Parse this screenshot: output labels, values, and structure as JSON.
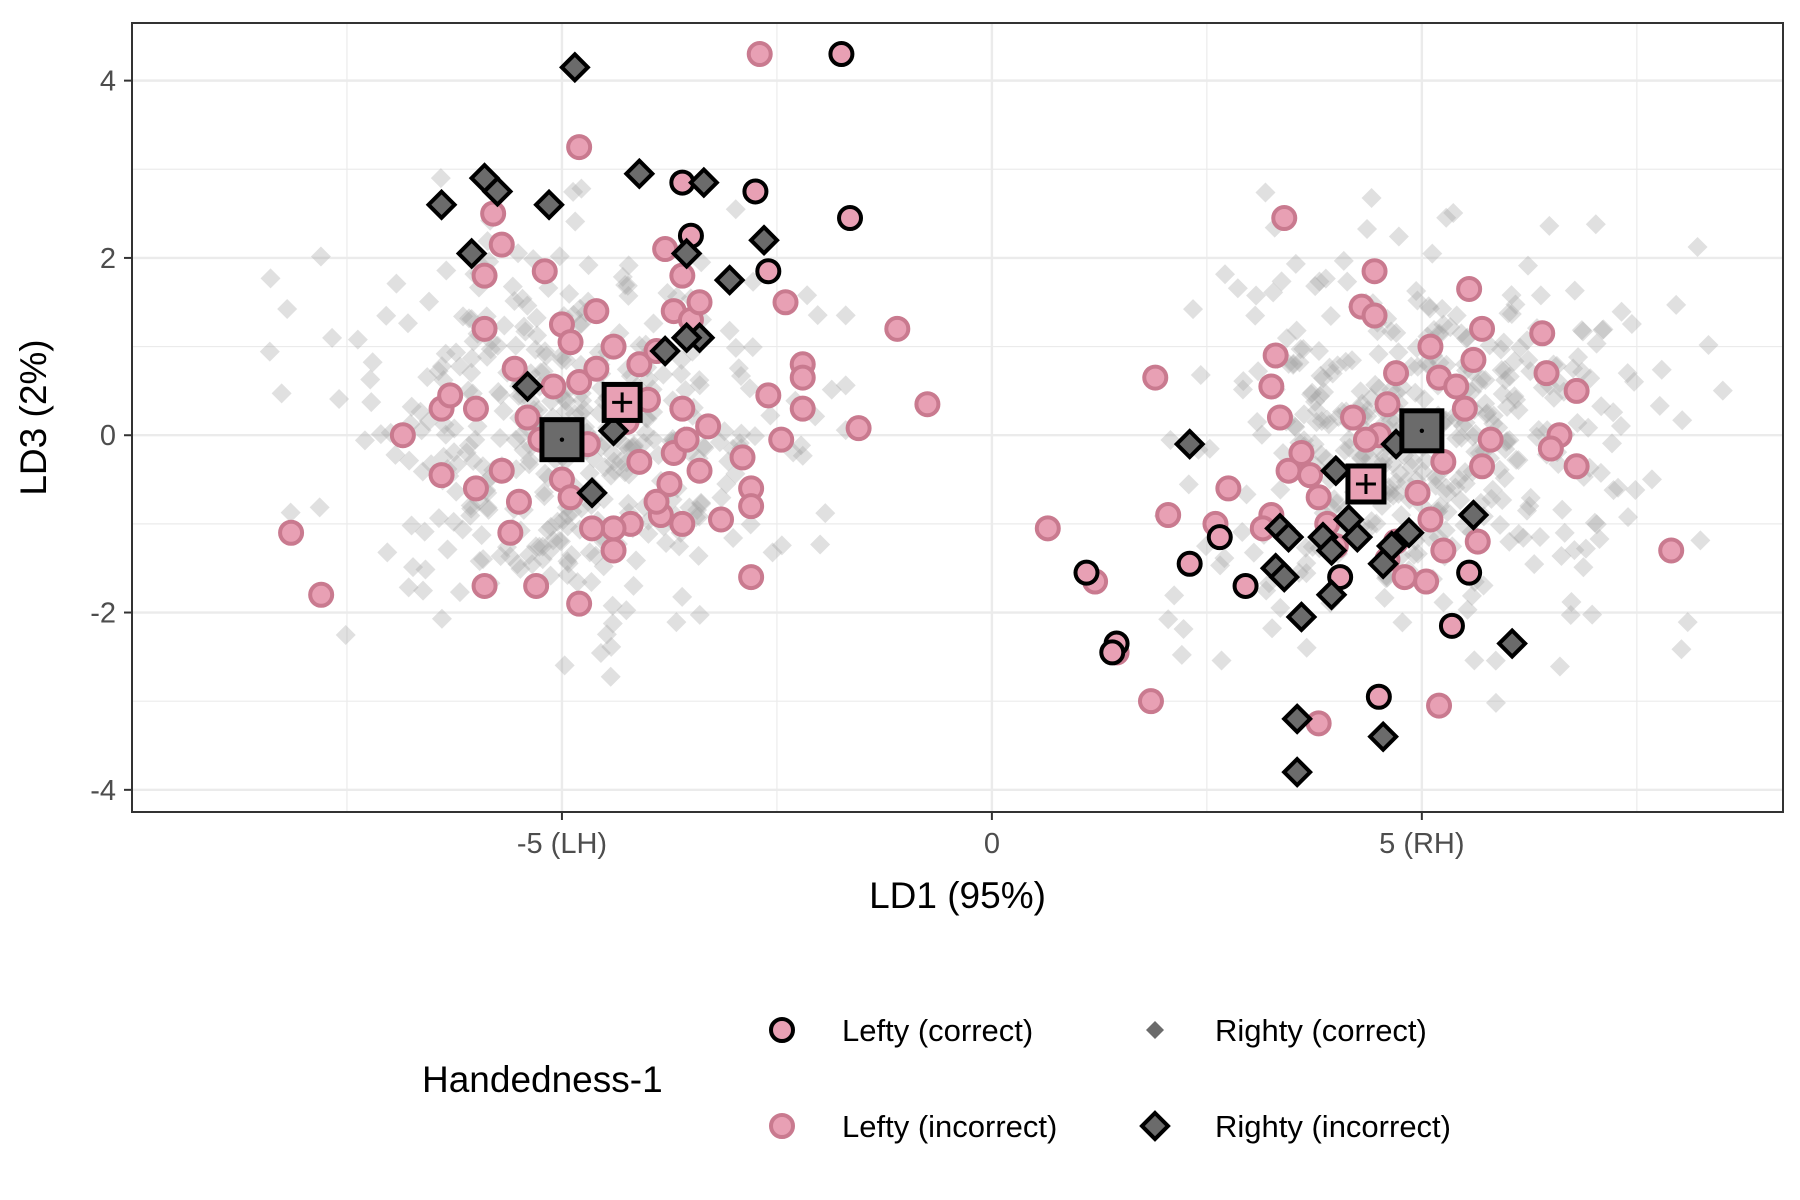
{
  "chart_data": {
    "type": "scatter",
    "xlabel": "LD1 (95%)",
    "ylabel": "LD3 (2%)",
    "xlim": [
      -10,
      9.2
    ],
    "ylim": [
      -4.25,
      4.65
    ],
    "x_ticks": [
      {
        "value": -5,
        "label": "-5 (LH)"
      },
      {
        "value": 0,
        "label": "0"
      },
      {
        "value": 5,
        "label": "5 (RH)"
      }
    ],
    "y_ticks": [
      {
        "value": -4,
        "label": "-4"
      },
      {
        "value": -2,
        "label": "-2"
      },
      {
        "value": 0,
        "label": "0"
      },
      {
        "value": 2,
        "label": "2"
      },
      {
        "value": 4,
        "label": "4"
      }
    ],
    "grid": true,
    "legend": {
      "title": "Handedness-1",
      "placement": "bottom",
      "entries": [
        {
          "key": "lefty_correct",
          "label": "Lefty (correct)"
        },
        {
          "key": "righty_correct",
          "label": "Righty (correct)"
        },
        {
          "key": "lefty_incorrect",
          "label": "Lefty (incorrect)"
        },
        {
          "key": "righty_incorrect",
          "label": "Righty (incorrect)"
        }
      ]
    },
    "colors": {
      "lefty_fill": "#e8a0b4",
      "lefty_incorrect_stroke": "#c97a8f",
      "righty_fill": "#6b6b6b",
      "righty_correct_fill": "#9e9e9e",
      "outline": "#000000",
      "grid": "#ebebeb",
      "panel_border": "#333333"
    },
    "series": [
      {
        "key": "righty_correct",
        "name": "Righty (correct)",
        "cluster_summary": [
          {
            "center": [
              -5.0,
              0.0
            ],
            "sd": [
              1.3,
              1.05
            ],
            "n": 420,
            "range_x": [
              -9.0,
              -1.7
            ],
            "range_y": [
              -3.3,
              2.9
            ]
          },
          {
            "center": [
              5.0,
              0.0
            ],
            "sd": [
              1.3,
              1.05
            ],
            "n": 420,
            "range_x": [
              1.4,
              8.5
            ],
            "range_y": [
              -3.3,
              3.2
            ]
          }
        ]
      },
      {
        "key": "lefty_incorrect",
        "name": "Lefty (incorrect)",
        "points": [
          [
            -2.7,
            4.3
          ],
          [
            -4.8,
            3.25
          ],
          [
            -5.8,
            2.5
          ],
          [
            -5.7,
            2.15
          ],
          [
            -5.9,
            1.8
          ],
          [
            -5.2,
            1.85
          ],
          [
            -5.9,
            1.2
          ],
          [
            -5.0,
            1.25
          ],
          [
            -4.9,
            1.05
          ],
          [
            -4.6,
            1.4
          ],
          [
            -4.4,
            1.0
          ],
          [
            -4.1,
            0.8
          ],
          [
            -3.9,
            0.95
          ],
          [
            -3.7,
            1.4
          ],
          [
            -3.6,
            1.8
          ],
          [
            -3.5,
            1.3
          ],
          [
            -3.4,
            1.5
          ],
          [
            -3.8,
            2.1
          ],
          [
            -2.4,
            1.5
          ],
          [
            -2.2,
            0.8
          ],
          [
            -2.2,
            0.65
          ],
          [
            -2.2,
            0.3
          ],
          [
            -2.6,
            0.45
          ],
          [
            -1.1,
            1.2
          ],
          [
            -0.75,
            0.35
          ],
          [
            -1.55,
            0.08
          ],
          [
            -2.45,
            -0.05
          ],
          [
            -2.9,
            -0.25
          ],
          [
            -2.8,
            -0.6
          ],
          [
            -2.8,
            -0.8
          ],
          [
            -2.8,
            -1.6
          ],
          [
            -3.6,
            -1.0
          ],
          [
            -3.75,
            -0.55
          ],
          [
            -3.85,
            -0.9
          ],
          [
            -4.2,
            -1.0
          ],
          [
            -4.4,
            -1.05
          ],
          [
            -4.4,
            -1.3
          ],
          [
            -4.8,
            -1.9
          ],
          [
            -5.3,
            -1.7
          ],
          [
            -5.6,
            -1.1
          ],
          [
            -5.9,
            -1.7
          ],
          [
            -6.0,
            -0.6
          ],
          [
            -6.4,
            -0.45
          ],
          [
            -6.4,
            0.3
          ],
          [
            -6.3,
            0.45
          ],
          [
            -6.0,
            0.3
          ],
          [
            -6.85,
            0.0
          ],
          [
            -5.5,
            -0.75
          ],
          [
            -5.7,
            -0.4
          ],
          [
            -5.0,
            -0.5
          ],
          [
            -5.4,
            0.2
          ],
          [
            -5.1,
            0.55
          ],
          [
            -4.8,
            0.6
          ],
          [
            -4.6,
            0.75
          ],
          [
            -4.3,
            0.4
          ],
          [
            -4.0,
            0.4
          ],
          [
            -3.6,
            0.3
          ],
          [
            -3.7,
            -0.2
          ],
          [
            -3.4,
            -0.4
          ],
          [
            -3.3,
            0.1
          ],
          [
            -4.1,
            -0.3
          ],
          [
            -4.7,
            -0.1
          ],
          [
            -4.9,
            -0.7
          ],
          [
            -4.65,
            -1.05
          ],
          [
            -3.9,
            -0.75
          ],
          [
            -8.15,
            -1.1
          ],
          [
            -7.8,
            -1.8
          ],
          [
            -5.25,
            -0.05
          ],
          [
            -5.55,
            0.75
          ],
          [
            -4.25,
            0.15
          ],
          [
            -3.55,
            -0.05
          ],
          [
            -3.15,
            -0.95
          ],
          [
            0.65,
            -1.05
          ],
          [
            1.2,
            -1.65
          ],
          [
            1.45,
            -2.45
          ],
          [
            1.85,
            -3.0
          ],
          [
            2.05,
            -0.9
          ],
          [
            1.9,
            0.65
          ],
          [
            2.75,
            -0.6
          ],
          [
            2.6,
            -1.0
          ],
          [
            3.3,
            0.9
          ],
          [
            3.25,
            0.55
          ],
          [
            3.35,
            0.2
          ],
          [
            3.4,
            2.45
          ],
          [
            3.45,
            -0.4
          ],
          [
            3.25,
            -0.9
          ],
          [
            3.6,
            -0.2
          ],
          [
            3.7,
            -0.45
          ],
          [
            3.8,
            -0.7
          ],
          [
            3.9,
            -1.0
          ],
          [
            4.0,
            -1.25
          ],
          [
            3.8,
            -3.25
          ],
          [
            4.3,
            1.45
          ],
          [
            4.45,
            1.35
          ],
          [
            4.45,
            1.85
          ],
          [
            4.2,
            0.2
          ],
          [
            4.5,
            0.0
          ],
          [
            4.4,
            -0.5
          ],
          [
            4.6,
            -1.4
          ],
          [
            4.7,
            -1.2
          ],
          [
            4.7,
            0.7
          ],
          [
            4.95,
            -0.65
          ],
          [
            5.1,
            -0.95
          ],
          [
            5.25,
            -0.3
          ],
          [
            5.1,
            1.0
          ],
          [
            5.2,
            0.65
          ],
          [
            5.25,
            -1.3
          ],
          [
            5.5,
            0.3
          ],
          [
            5.55,
            1.65
          ],
          [
            5.6,
            0.85
          ],
          [
            5.7,
            1.2
          ],
          [
            5.8,
            -0.05
          ],
          [
            5.7,
            -0.35
          ],
          [
            5.65,
            -1.2
          ],
          [
            5.4,
            0.55
          ],
          [
            6.4,
            1.15
          ],
          [
            6.45,
            0.7
          ],
          [
            6.8,
            0.5
          ],
          [
            6.6,
            0.0
          ],
          [
            6.5,
            -0.15
          ],
          [
            6.8,
            -0.35
          ],
          [
            7.9,
            -1.3
          ],
          [
            5.2,
            -3.05
          ],
          [
            4.8,
            -1.6
          ],
          [
            3.15,
            -1.05
          ],
          [
            4.35,
            -0.05
          ],
          [
            4.6,
            0.35
          ],
          [
            5.05,
            -1.65
          ]
        ]
      },
      {
        "key": "lefty_correct",
        "name": "Lefty (correct)",
        "points": [
          [
            -1.75,
            4.3
          ],
          [
            -3.6,
            2.85
          ],
          [
            -2.75,
            2.75
          ],
          [
            -3.5,
            2.25
          ],
          [
            -1.65,
            2.45
          ],
          [
            -2.6,
            1.85
          ],
          [
            1.1,
            -1.55
          ],
          [
            1.45,
            -2.35
          ],
          [
            1.4,
            -2.45
          ],
          [
            2.3,
            -1.45
          ],
          [
            2.65,
            -1.15
          ],
          [
            2.95,
            -1.7
          ],
          [
            4.05,
            -1.6
          ],
          [
            4.5,
            -2.95
          ],
          [
            5.35,
            -2.15
          ],
          [
            5.55,
            -1.55
          ]
        ]
      },
      {
        "key": "righty_incorrect",
        "name": "Righty (incorrect)",
        "points": [
          [
            -4.85,
            4.15
          ],
          [
            -4.1,
            2.95
          ],
          [
            -3.35,
            2.85
          ],
          [
            -5.9,
            2.9
          ],
          [
            -5.75,
            2.75
          ],
          [
            -6.4,
            2.6
          ],
          [
            -5.15,
            2.6
          ],
          [
            -6.05,
            2.05
          ],
          [
            -3.55,
            2.05
          ],
          [
            -2.65,
            2.2
          ],
          [
            -3.05,
            1.75
          ],
          [
            -3.4,
            1.1
          ],
          [
            -3.55,
            1.1
          ],
          [
            -3.8,
            0.95
          ],
          [
            -5.4,
            0.55
          ],
          [
            -4.4,
            0.05
          ],
          [
            -4.65,
            -0.65
          ],
          [
            2.3,
            -0.1
          ],
          [
            3.35,
            -1.05
          ],
          [
            3.45,
            -1.15
          ],
          [
            3.3,
            -1.5
          ],
          [
            3.4,
            -1.6
          ],
          [
            3.6,
            -2.05
          ],
          [
            3.85,
            -1.15
          ],
          [
            3.95,
            -1.3
          ],
          [
            3.95,
            -1.8
          ],
          [
            4.0,
            -0.4
          ],
          [
            4.15,
            -0.95
          ],
          [
            4.25,
            -1.15
          ],
          [
            4.55,
            -1.45
          ],
          [
            4.65,
            -1.25
          ],
          [
            4.85,
            -1.1
          ],
          [
            4.7,
            -0.1
          ],
          [
            5.6,
            -0.9
          ],
          [
            6.05,
            -2.35
          ],
          [
            3.55,
            -3.2
          ],
          [
            4.55,
            -3.4
          ],
          [
            3.55,
            -3.8
          ]
        ]
      },
      {
        "key": "lefty_mean",
        "name": "Lefty",
        "points": [
          [
            -4.3,
            0.37
          ],
          [
            4.35,
            -0.55
          ]
        ]
      },
      {
        "key": "righty_mean",
        "name": "Righty",
        "points": [
          [
            -5.0,
            -0.05
          ],
          [
            5.0,
            0.05
          ]
        ]
      }
    ]
  }
}
